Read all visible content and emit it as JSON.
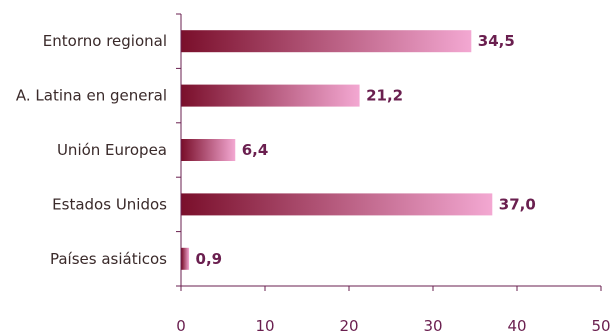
{
  "chart_data": {
    "type": "bar",
    "orientation": "horizontal",
    "categories": [
      "Entorno regional",
      "A. Latina en general",
      "Unión Europea",
      "Estados Unidos",
      "Países asiáticos"
    ],
    "values": [
      34.5,
      21.2,
      6.4,
      37.0,
      0.9
    ],
    "value_labels": [
      "34,5",
      "21,2",
      "6,4",
      "37,0",
      "0,9"
    ],
    "xlim": [
      0,
      50
    ],
    "xticks": [
      0,
      10,
      20,
      30,
      40,
      50
    ],
    "xtick_labels": [
      "0",
      "10",
      "20",
      "30",
      "40",
      "50"
    ],
    "grid": false,
    "colors": {
      "bar_dark": "#7a0f2b",
      "bar_light": "#f3a8d2",
      "text": "#3a2a2a",
      "accent": "#6a1f4f"
    }
  }
}
